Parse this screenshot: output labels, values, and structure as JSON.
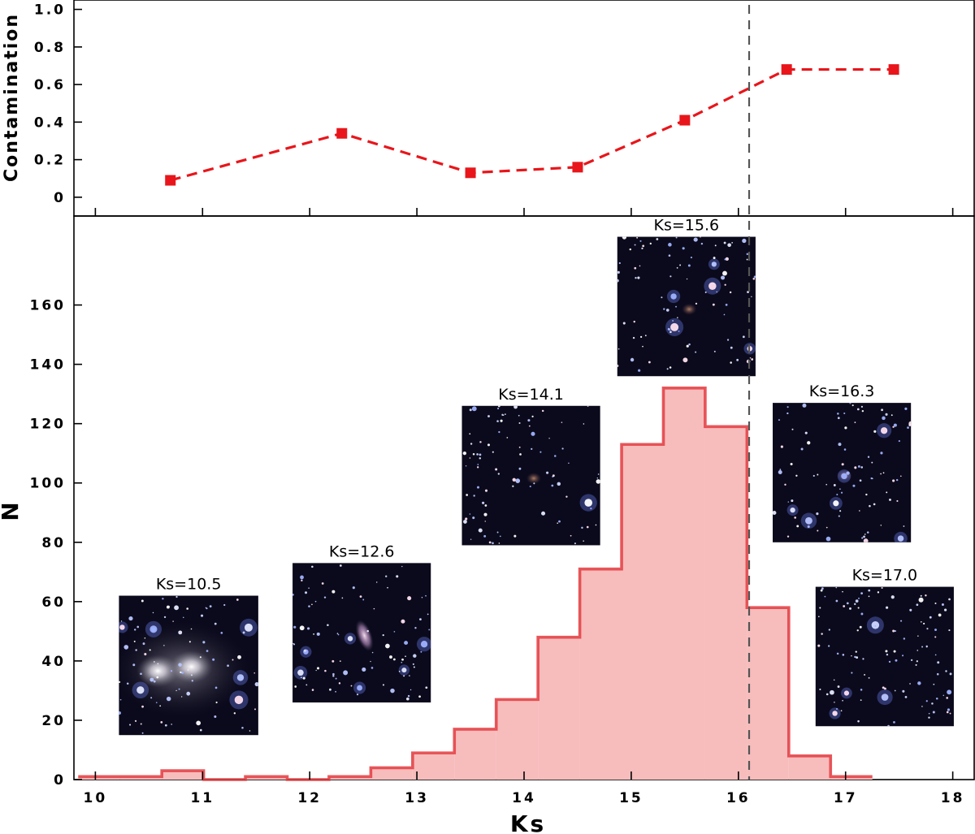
{
  "colors": {
    "series": "#e8161b",
    "hist_fill": "#f7bcbc",
    "hist_edge": "#e33b3f",
    "cut_line": "#555555",
    "thumb_bg": "#0b0a1c"
  },
  "chart_data": [
    {
      "type": "line",
      "name": "top-contamination-panel",
      "title": "",
      "xlabel": "",
      "ylabel": "Contamination",
      "xlim": [
        9.8,
        18.2
      ],
      "ylim": [
        -0.1,
        1.05
      ],
      "yticks": [
        0,
        0.2,
        0.4,
        0.6,
        0.8,
        1.0
      ],
      "ytick_labels": [
        "0",
        "0.2",
        "0.4",
        "0.6",
        "0.8",
        "1.0"
      ],
      "series": [
        {
          "name": "contamination",
          "style": "dashed-square-markers",
          "x": [
            10.7,
            12.3,
            13.5,
            14.5,
            15.5,
            16.45,
            17.45
          ],
          "y": [
            0.09,
            0.34,
            0.13,
            0.16,
            0.41,
            0.68,
            0.68
          ]
        }
      ]
    },
    {
      "type": "bar",
      "name": "bottom-histogram-panel",
      "title": "",
      "xlabel": "Ks",
      "ylabel": "N",
      "xlim": [
        9.8,
        18.2
      ],
      "ylim": [
        0,
        190
      ],
      "xticks": [
        10,
        11,
        12,
        13,
        14,
        15,
        16,
        17,
        18
      ],
      "xtick_labels": [
        "10",
        "11",
        "12",
        "13",
        "14",
        "15",
        "16",
        "17",
        "18"
      ],
      "yticks": [
        0,
        20,
        40,
        60,
        80,
        100,
        120,
        140,
        160
      ],
      "ytick_labels": [
        "0",
        "20",
        "40",
        "60",
        "80",
        "100",
        "120",
        "140",
        "160"
      ],
      "bin_width": 0.39,
      "bin_edges_start": 9.84,
      "counts": [
        1,
        1,
        3,
        0,
        1,
        0,
        1,
        4,
        9,
        17,
        27,
        48,
        71,
        113,
        132,
        119,
        58,
        8,
        1
      ],
      "vertical_line_x": 16.1,
      "thumbnails": [
        {
          "label": "Ks=10.5",
          "x": [
            10.22,
            11.52
          ],
          "y": [
            15,
            62
          ],
          "kind": "galaxy-pair"
        },
        {
          "label": "Ks=12.6",
          "x": [
            11.84,
            13.13
          ],
          "y": [
            26,
            73
          ],
          "kind": "small-galaxy"
        },
        {
          "label": "Ks=14.1",
          "x": [
            13.42,
            14.71
          ],
          "y": [
            79,
            126
          ],
          "kind": "faint-galaxy"
        },
        {
          "label": "Ks=15.6",
          "x": [
            14.87,
            16.16
          ],
          "y": [
            136,
            183
          ],
          "kind": "faint-galaxy"
        },
        {
          "label": "Ks=16.3",
          "x": [
            16.32,
            17.61
          ],
          "y": [
            80,
            127
          ],
          "kind": "faint-galaxy"
        },
        {
          "label": "Ks=17.0",
          "x": [
            16.72,
            18.01
          ],
          "y": [
            18,
            65
          ],
          "kind": "dense-stars"
        }
      ]
    }
  ]
}
